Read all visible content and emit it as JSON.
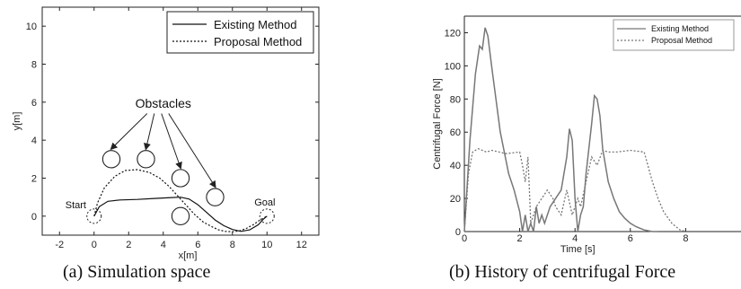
{
  "figure": {
    "caption_a": "(a)   Simulation space",
    "caption_b": "(b)   History of centrifugal Force"
  },
  "chart_data": [
    {
      "type": "line",
      "id": "a",
      "xlabel": "x[m]",
      "ylabel": "y[m]",
      "xlim": [
        -3,
        13
      ],
      "ylim": [
        -1,
        11
      ],
      "xticks": [
        -2,
        0,
        2,
        4,
        6,
        8,
        10,
        12
      ],
      "yticks": [
        0,
        2,
        4,
        6,
        8,
        10
      ],
      "legend": {
        "position": "top-right",
        "entries": [
          "Existing Method",
          "Proposal Method"
        ]
      },
      "series": [
        {
          "name": "Existing Method",
          "style": "solid",
          "x": [
            0,
            0.3,
            0.8,
            1.5,
            2.5,
            3.5,
            4.5,
            5.0,
            5.5,
            6.0,
            6.5,
            7.0,
            7.5,
            8.0,
            8.5,
            9.0,
            9.5,
            9.8,
            10.0
          ],
          "y": [
            0,
            0.5,
            0.78,
            0.85,
            0.88,
            0.93,
            0.98,
            1.0,
            0.9,
            0.6,
            0.2,
            -0.2,
            -0.5,
            -0.7,
            -0.8,
            -0.72,
            -0.45,
            -0.15,
            0
          ]
        },
        {
          "name": "Proposal Method",
          "style": "dotted",
          "x": [
            0,
            0.2,
            0.6,
            1.2,
            1.8,
            2.5,
            3.2,
            3.8,
            4.3,
            4.8,
            5.3,
            5.8,
            6.3,
            6.8,
            7.2,
            7.6,
            8.0,
            8.4,
            8.8,
            9.2,
            9.6,
            10.0
          ],
          "y": [
            0,
            0.7,
            1.5,
            2.1,
            2.4,
            2.45,
            2.3,
            2.0,
            1.6,
            1.1,
            0.6,
            0.1,
            -0.3,
            -0.55,
            -0.72,
            -0.8,
            -0.82,
            -0.78,
            -0.65,
            -0.45,
            -0.2,
            0
          ]
        }
      ],
      "obstacles": [
        [
          1,
          3
        ],
        [
          3,
          3
        ],
        [
          5,
          2
        ],
        [
          7,
          1
        ],
        [
          5,
          0
        ]
      ],
      "annotations": {
        "obstacles": "Obstacles",
        "start": "Start",
        "goal": "Goal"
      }
    },
    {
      "type": "line",
      "id": "b",
      "xlabel": "Time [s]",
      "ylabel": "Centrifugal Force [N]",
      "xlim": [
        0,
        10
      ],
      "ylim": [
        0,
        130
      ],
      "xticks": [
        0,
        2,
        4,
        6,
        8
      ],
      "yticks": [
        0,
        20,
        40,
        60,
        80,
        100,
        120
      ],
      "legend": {
        "position": "top-right",
        "entries": [
          "Existing Method",
          "Proposal Method"
        ]
      },
      "series": [
        {
          "name": "Existing Method",
          "style": "solid",
          "x": [
            0,
            0.2,
            0.4,
            0.55,
            0.65,
            0.75,
            0.85,
            1.0,
            1.3,
            1.6,
            1.8,
            2.0,
            2.1,
            2.2,
            2.3,
            2.4,
            2.5,
            2.6,
            2.7,
            2.8,
            2.9,
            3.0,
            3.1,
            3.3,
            3.5,
            3.7,
            3.8,
            3.9,
            4.0,
            4.1,
            4.2,
            4.3,
            4.4,
            4.5,
            4.6,
            4.7,
            4.8,
            4.9,
            5.0,
            5.1,
            5.2,
            5.4,
            5.6,
            5.8,
            6.0,
            6.2,
            6.5,
            6.8,
            7.0
          ],
          "y": [
            0,
            55,
            95,
            112,
            110,
            123,
            118,
            98,
            60,
            35,
            25,
            12,
            0,
            10,
            0,
            5,
            0,
            15,
            5,
            10,
            5,
            10,
            15,
            20,
            25,
            45,
            62,
            55,
            20,
            0,
            10,
            15,
            35,
            50,
            65,
            82,
            80,
            70,
            50,
            40,
            30,
            20,
            12,
            8,
            5,
            3,
            1,
            0,
            0
          ]
        },
        {
          "name": "Proposal Method",
          "style": "dotted",
          "x": [
            0,
            0.15,
            0.3,
            0.5,
            0.8,
            1.0,
            1.5,
            2.0,
            2.1,
            2.2,
            2.3,
            2.35,
            2.4,
            2.5,
            2.6,
            2.8,
            3.0,
            3.2,
            3.3,
            3.5,
            3.7,
            3.9,
            4.1,
            4.2,
            4.4,
            4.6,
            4.8,
            5.0,
            5.2,
            5.5,
            6.0,
            6.5,
            6.8,
            7.0,
            7.2,
            7.5,
            7.8,
            8.0
          ],
          "y": [
            0,
            35,
            48,
            50,
            48,
            49,
            47,
            48,
            40,
            30,
            45,
            25,
            5,
            10,
            15,
            20,
            25,
            20,
            15,
            10,
            25,
            10,
            20,
            15,
            30,
            45,
            40,
            49,
            48,
            48,
            49,
            48,
            30,
            20,
            12,
            5,
            1,
            0
          ]
        }
      ]
    }
  ]
}
